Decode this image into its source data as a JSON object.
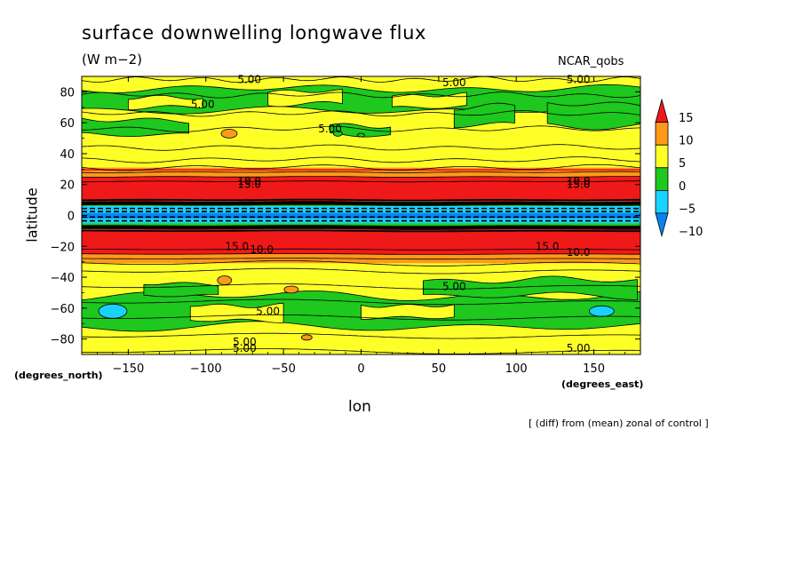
{
  "title": "surface downwelling longwave flux",
  "units": "(W m−2)",
  "model": "NCAR_qobs",
  "footnote": "[ (diff) from (mean) zonal of control ]",
  "chart_data": {
    "type": "contour",
    "title": "surface downwelling longwave flux",
    "units": "(W m−2)",
    "xlabel": "lon",
    "ylabel": "latitude",
    "xunits": "(degrees_east)",
    "yunits": "(degrees_north)",
    "xlim": [
      -180,
      180
    ],
    "ylim": [
      -90,
      90
    ],
    "xticks": [
      -150,
      -100,
      -50,
      0,
      50,
      100,
      150
    ],
    "yticks": [
      -80,
      -60,
      -40,
      -20,
      0,
      20,
      40,
      60,
      80
    ],
    "xtick_labels": [
      "−150",
      "−100",
      "−50",
      "0",
      "50",
      "100",
      "150"
    ],
    "ytick_labels": [
      "−80",
      "−60",
      "−40",
      "−20",
      "0",
      "20",
      "40",
      "60",
      "80"
    ],
    "colorbar": {
      "levels": [
        -15,
        -10,
        -5,
        0,
        5,
        10,
        15,
        20
      ],
      "tick_labels": [
        "15",
        "10",
        "5",
        "0",
        "−5",
        "−10"
      ],
      "colors": [
        "#0a82f0",
        "#19d2ff",
        "#1ec81e",
        "#ffff28",
        "#ff9a19",
        "#f01919"
      ]
    },
    "zonal_bands": [
      {
        "lat_from": 90,
        "lat_to": 86,
        "level": "5 to 10"
      },
      {
        "lat_from": 86,
        "lat_to": 31,
        "level": "0 to 10 (mixed)"
      },
      {
        "lat_from": 31,
        "lat_to": 28,
        "level": "10 to 15"
      },
      {
        "lat_from": 28,
        "lat_to": 25,
        "level": "10 to 15"
      },
      {
        "lat_from": 25,
        "lat_to": 9,
        "level": ">15"
      },
      {
        "lat_from": 9,
        "lat_to": 6,
        "level": "0 to 15 (steep gradient)"
      },
      {
        "lat_from": 6,
        "lat_to": -5,
        "level": "-10 to -5"
      },
      {
        "lat_from": -5,
        "lat_to": -9,
        "level": "0 to 15 (steep gradient)"
      },
      {
        "lat_from": -9,
        "lat_to": -25,
        "level": ">15"
      },
      {
        "lat_from": -25,
        "lat_to": -31,
        "level": "10 to 15"
      },
      {
        "lat_from": -31,
        "lat_to": -86,
        "level": "0 to 10 (mixed)"
      },
      {
        "lat_from": -86,
        "lat_to": -90,
        "level": "5 to 10"
      }
    ],
    "contour_labels": [
      "5.00",
      "5.00",
      "5.00",
      "5.00",
      "5.00",
      "10.0",
      "15.0",
      "10.0",
      "15.0",
      "15.0",
      "10.0",
      "15.0",
      "10.0",
      "5.00",
      "5.00",
      "5.00",
      "5.00",
      "5.00"
    ]
  }
}
